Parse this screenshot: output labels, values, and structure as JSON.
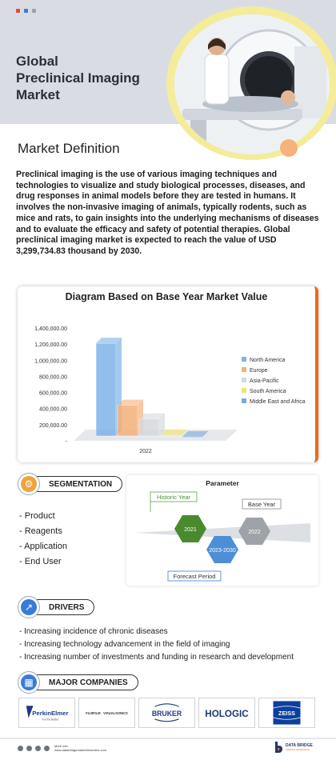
{
  "header": {
    "title_lines": [
      "Global",
      "Preclinical Imaging",
      "Market"
    ],
    "dot_colors": [
      "#e8473b",
      "#3b7bd8",
      "#9aa3ad"
    ]
  },
  "definition": {
    "heading": "Market Definition",
    "body": "Preclinical imaging is the use of various imaging techniques and technologies to visualize and study biological processes, diseases, and drug responses in animal models before they are tested in humans. It involves the non-invasive imaging of animals, typically rodents, such as mice and rats, to gain insights into the underlying mechanisms of diseases and to evaluate the efficacy and safety of potential therapies. Global preclinical imaging market is expected to reach the value of USD 3,299,734.83 thousand by 2030."
  },
  "chart_data": {
    "type": "bar",
    "title": "Diagram Based on Base Year Market Value",
    "categories": [
      "2022"
    ],
    "y_ticks": [
      "1,400,000.00",
      "1,200,000.00",
      "1,000,000.00",
      "800,000.00",
      "600,000.00",
      "400,000.00",
      "200,000.00",
      "-"
    ],
    "ylim": [
      0,
      1400000
    ],
    "series": [
      {
        "name": "North America",
        "values": [
          1250000
        ],
        "color": "#7fb3e8"
      },
      {
        "name": "Europe",
        "values": [
          480000
        ],
        "color": "#f3b07a"
      },
      {
        "name": "Asia-Pacific",
        "values": [
          310000
        ],
        "color": "#d5d8dc"
      },
      {
        "name": "South America",
        "values": [
          110000
        ],
        "color": "#f4e26a"
      },
      {
        "name": "Middle East and Africa",
        "values": [
          90000
        ],
        "color": "#7aa8e0"
      }
    ],
    "legend_position": "right",
    "grid": false
  },
  "segmentation": {
    "label": "SEGMENTATION",
    "items": [
      "Product",
      "Reagents",
      "Application",
      "End User"
    ]
  },
  "parameter": {
    "title": "Parameter",
    "historic_label": "Historic Year",
    "base_label": "Base Year",
    "forecast_label": "Forecast Period",
    "historic_value": "2021",
    "base_value": "2022",
    "forecast_value": "2023-2030"
  },
  "drivers": {
    "label": "DRIVERS",
    "items": [
      "Increasing incidence of chronic diseases",
      "Increasing technology advancement in the field of imaging",
      "Increasing number of investments and funding in research and development"
    ]
  },
  "companies": {
    "label": "MAJOR COMPANIES",
    "logos": [
      {
        "name": "PerkinElmer",
        "tagline": "For the Better"
      },
      {
        "name": "FUJIFILM · VISUALSONICS"
      },
      {
        "name": "BRUKER"
      },
      {
        "name": "HOLOGIC"
      },
      {
        "name": "ZEISS"
      }
    ]
  },
  "footer": {
    "more_info": "More info",
    "url": "www.databridgemarketresearch.com",
    "brand": "DATA BRIDGE",
    "brand_sub": "MARKET RESEARCH"
  }
}
